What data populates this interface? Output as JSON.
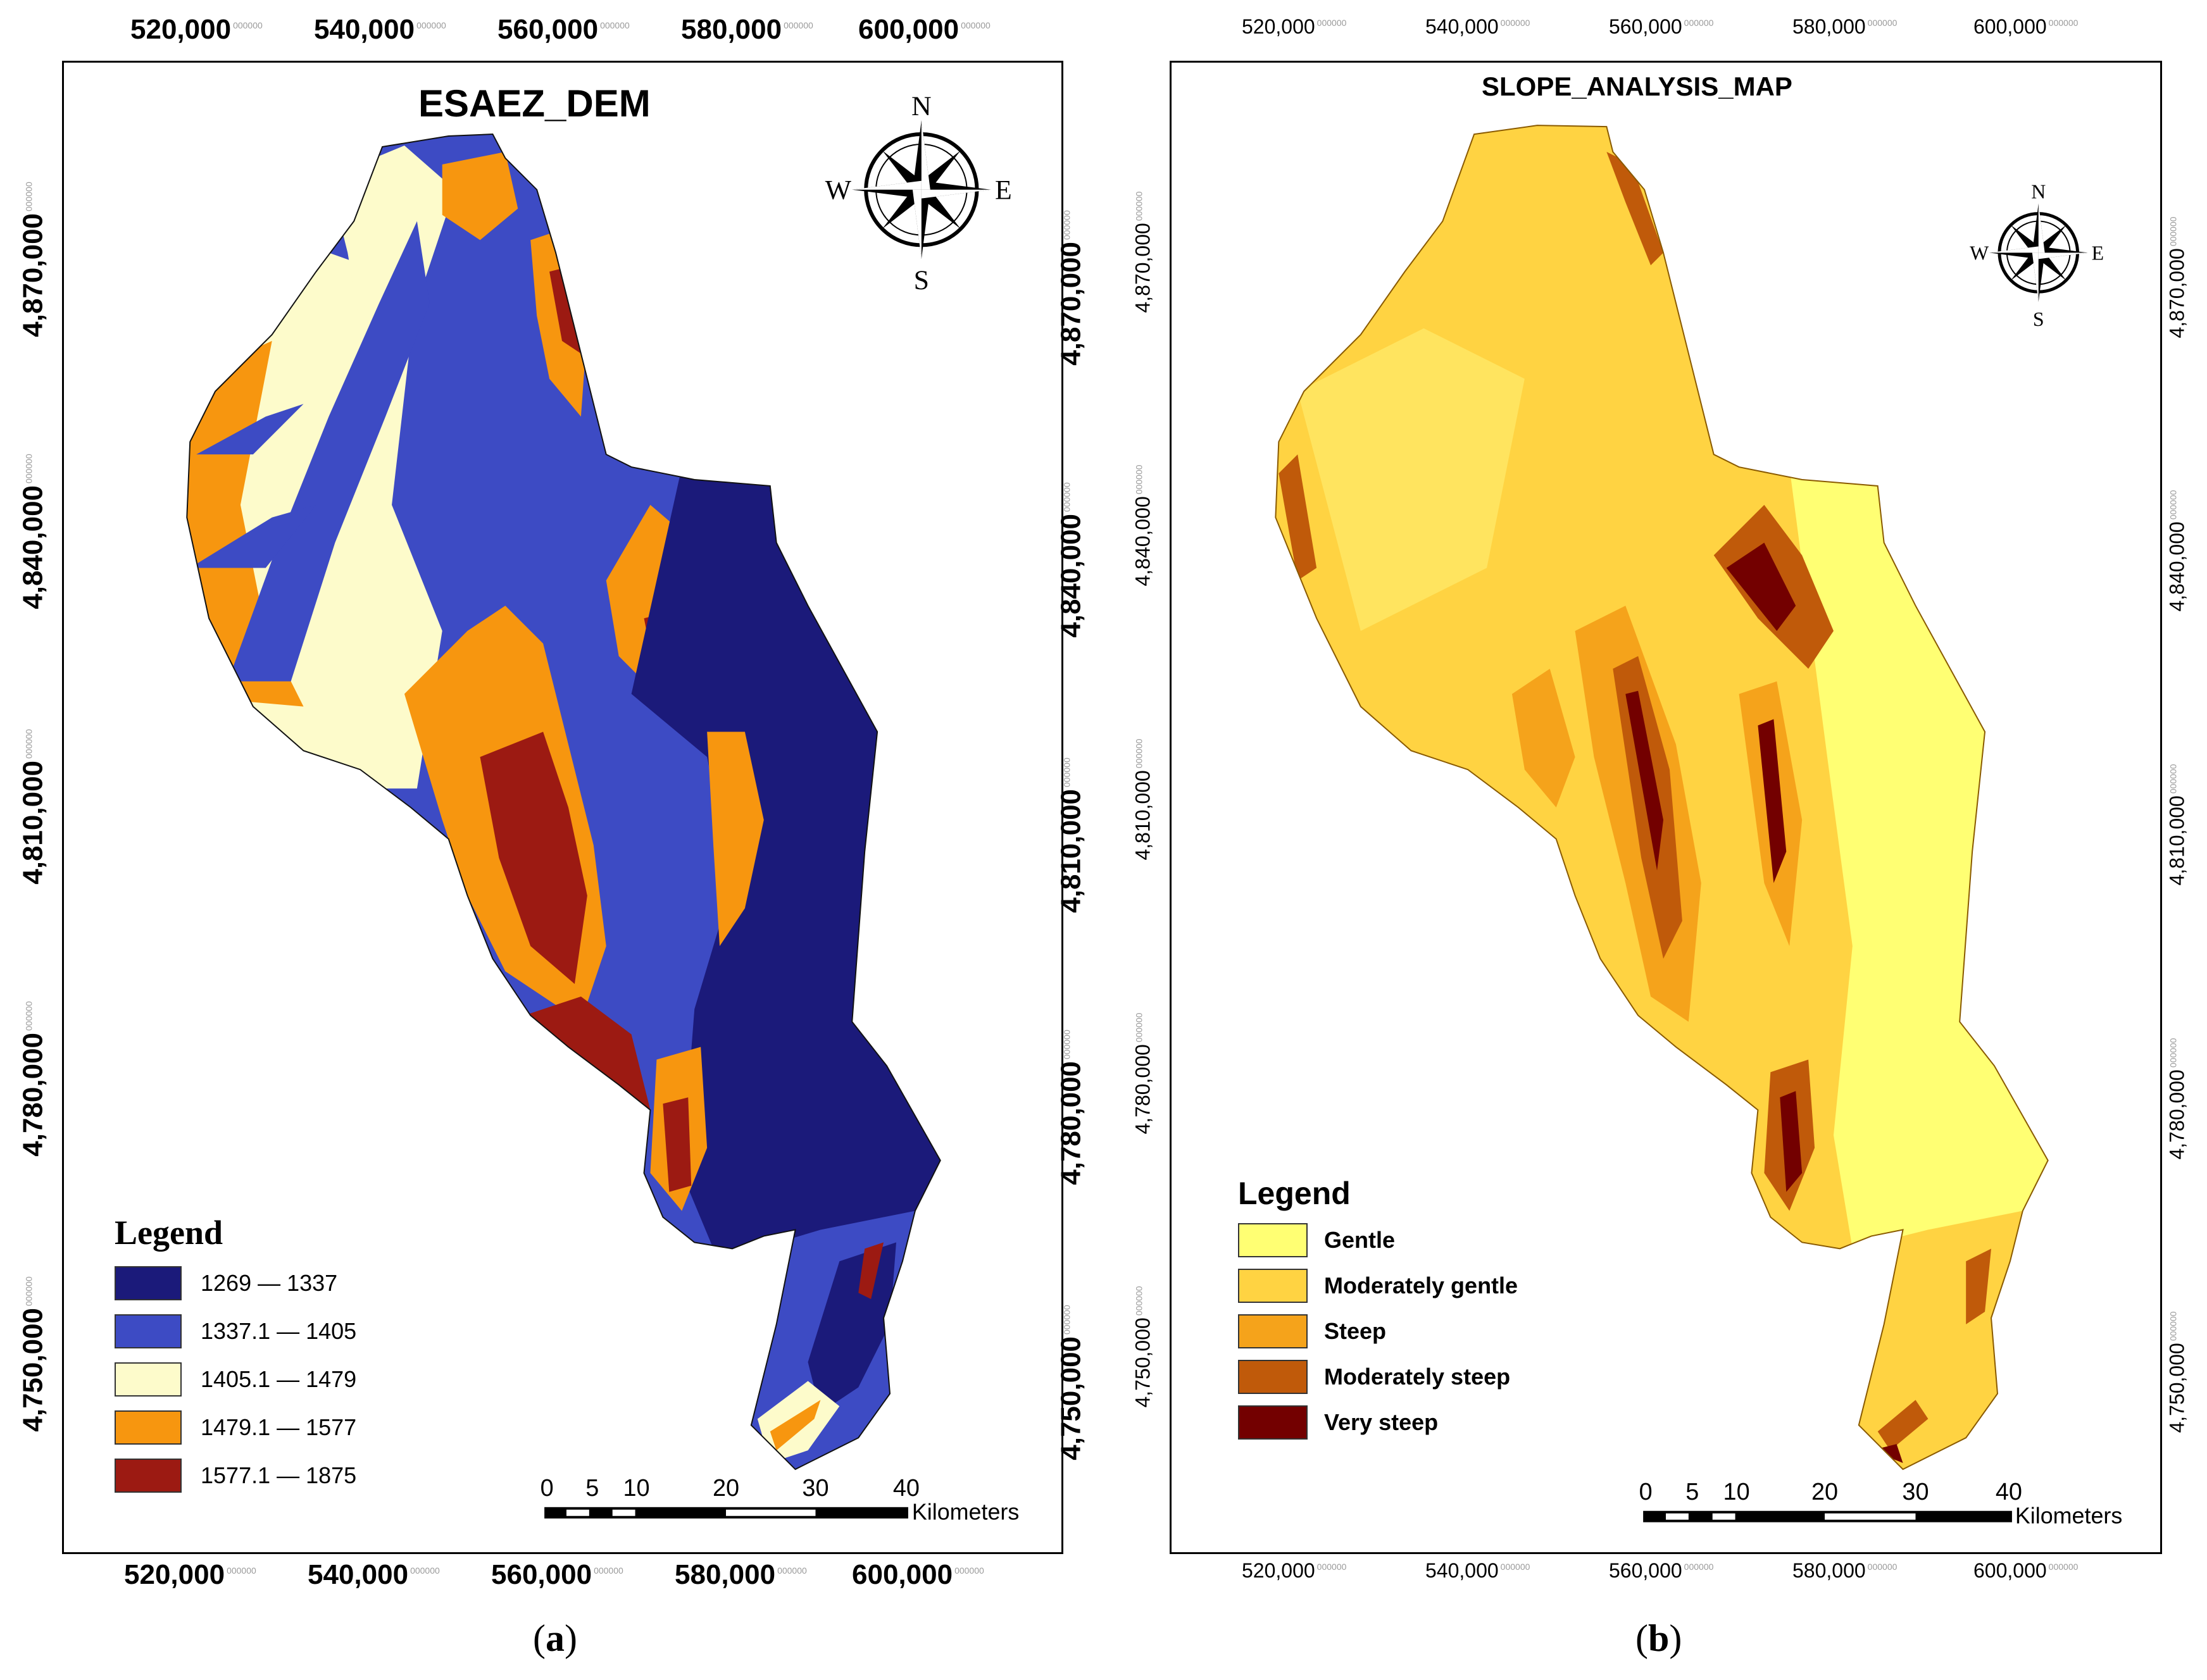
{
  "panel_a": {
    "title": "ESAEZ_DEM",
    "x_ticks": [
      "520,000",
      "540,000",
      "560,000",
      "580,000",
      "600,000"
    ],
    "y_ticks": [
      "4,870,000",
      "4,840,000",
      "4,810,000",
      "4,780,000",
      "4,750,000"
    ],
    "tick_suffix": "000000",
    "compass": {
      "n": "N",
      "s": "S",
      "e": "E",
      "w": "W"
    },
    "legend_title": "Legend",
    "legend": [
      {
        "label": "1269 — 1337",
        "color": "#1b1a7a"
      },
      {
        "label": "1337.1 — 1405",
        "color": "#3d4bc4"
      },
      {
        "label": "1405.1 — 1479",
        "color": "#fdfbcb"
      },
      {
        "label": "1479.1 — 1577",
        "color": "#f7960f"
      },
      {
        "label": "1577.1 — 1875",
        "color": "#9c1a12"
      }
    ],
    "scale_labels": [
      "0",
      "5",
      "10",
      "20",
      "30",
      "40"
    ],
    "scale_unit": "Kilometers",
    "caption": "a"
  },
  "panel_b": {
    "title": "SLOPE_ANALYSIS_MAP",
    "x_ticks": [
      "520,000",
      "540,000",
      "560,000",
      "580,000",
      "600,000"
    ],
    "y_ticks": [
      "4,870,000",
      "4,840,000",
      "4,810,000",
      "4,780,000",
      "4,750,000"
    ],
    "tick_suffix": "000000",
    "compass": {
      "n": "N",
      "s": "S",
      "e": "E",
      "w": "W"
    },
    "legend_title": "Legend",
    "legend": [
      {
        "label": "Gentle",
        "color": "#ffff73"
      },
      {
        "label": "Moderately gentle",
        "color": "#ffd342"
      },
      {
        "label": "Steep",
        "color": "#f5a31b"
      },
      {
        "label": "Moderately steep",
        "color": "#c05a0a"
      },
      {
        "label": "Very steep",
        "color": "#730000"
      }
    ],
    "scale_labels": [
      "0",
      "5",
      "10",
      "20",
      "30",
      "40"
    ],
    "scale_unit": "Kilometers",
    "caption": "b"
  }
}
